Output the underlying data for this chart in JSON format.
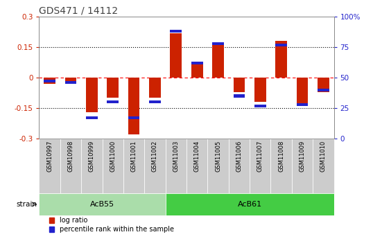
{
  "title": "GDS471 / 14112",
  "samples": [
    "GSM10997",
    "GSM10998",
    "GSM10999",
    "GSM11000",
    "GSM11001",
    "GSM11002",
    "GSM11003",
    "GSM11004",
    "GSM11005",
    "GSM11006",
    "GSM11007",
    "GSM11008",
    "GSM11009",
    "GSM11010"
  ],
  "log_ratio": [
    -0.03,
    -0.02,
    -0.17,
    -0.1,
    -0.28,
    -0.1,
    0.22,
    0.08,
    0.16,
    -0.07,
    -0.12,
    0.18,
    -0.14,
    -0.07
  ],
  "percentile": [
    47,
    46,
    17,
    30,
    17,
    30,
    88,
    62,
    78,
    35,
    27,
    77,
    28,
    40
  ],
  "ylim": [
    -0.3,
    0.3
  ],
  "y2lim": [
    0,
    100
  ],
  "yticks": [
    -0.3,
    -0.15,
    0,
    0.15,
    0.3
  ],
  "y2ticks": [
    0,
    25,
    50,
    75,
    100
  ],
  "ytick_labels": [
    "-0.3",
    "-0.15",
    "0",
    "0.15",
    "0.3"
  ],
  "y2tick_labels": [
    "0",
    "25",
    "50",
    "75",
    "100%"
  ],
  "hlines": [
    -0.15,
    0,
    0.15
  ],
  "hline_styles": [
    "dotted",
    "dashed",
    "dotted"
  ],
  "hline_colors": [
    "black",
    "red",
    "black"
  ],
  "bar_color_log": "#cc2200",
  "bar_color_pct": "#2222cc",
  "groups": [
    {
      "label": "AcB55",
      "start": 0,
      "end": 5,
      "color": "#aaddaa"
    },
    {
      "label": "AcB61",
      "start": 6,
      "end": 13,
      "color": "#44cc44"
    }
  ],
  "strain_label": "strain",
  "legend_log": "log ratio",
  "legend_pct": "percentile rank within the sample",
  "title_color": "#444444",
  "left_tick_color": "#cc2200",
  "right_tick_color": "#2222cc",
  "background_color": "#ffffff",
  "plot_bg_color": "#ffffff",
  "label_bg_color": "#cccccc"
}
